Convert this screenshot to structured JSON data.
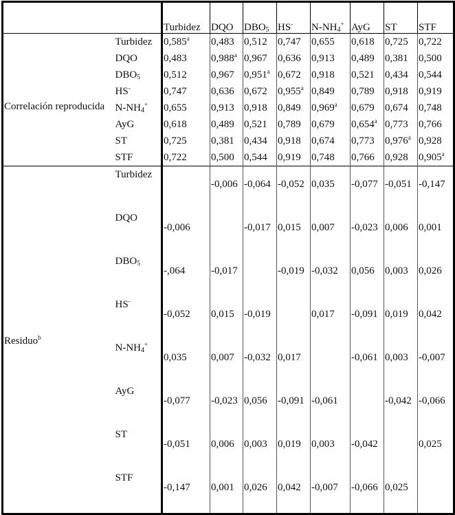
{
  "columns": [
    {
      "base": "Turbidez",
      "sub": "",
      "sup": ""
    },
    {
      "base": "DQO",
      "sub": "",
      "sup": ""
    },
    {
      "base": "DBO",
      "sub": "5",
      "sup": ""
    },
    {
      "base": "HS",
      "sub": "",
      "sup": "-"
    },
    {
      "base": "N-NH",
      "sub": "4",
      "sup": "+"
    },
    {
      "base": "AyG",
      "sub": "",
      "sup": ""
    },
    {
      "base": "ST",
      "sub": "",
      "sup": ""
    },
    {
      "base": "STF",
      "sub": "",
      "sup": ""
    }
  ],
  "sections": [
    {
      "label": "Correlación reproducida",
      "label_sup": "",
      "rows": [
        [
          "0,585a",
          "0,483",
          "0,512",
          "0,747",
          "0,655",
          "0,618",
          "0,725",
          "0,722"
        ],
        [
          "0,483",
          "0,988a",
          "0,967",
          "0,636",
          "0,913",
          "0,489",
          "0,381",
          "0,500"
        ],
        [
          "0,512",
          "0,967",
          "0,951a",
          "0,672",
          "0,918",
          "0,521",
          "0,434",
          "0,544"
        ],
        [
          "0,747",
          "0,636",
          "0,672",
          "0,955a",
          "0,849",
          "0,789",
          "0,918",
          "0,919"
        ],
        [
          "0,655",
          "0,913",
          "0,918",
          "0,849",
          "0,969a",
          "0,679",
          "0,674",
          "0,748"
        ],
        [
          "0,618",
          "0,489",
          "0,521",
          "0,789",
          "0,679",
          "0,654a",
          "0,773",
          "0,766"
        ],
        [
          "0,725",
          "0,381",
          "0,434",
          "0,918",
          "0,674",
          "0,773",
          "0,976a",
          "0,928"
        ],
        [
          "0,722",
          "0,500",
          "0,544",
          "0,919",
          "0,748",
          "0,766",
          "0,928",
          "0,905a"
        ]
      ]
    },
    {
      "label": "Residuo",
      "label_sup": "b",
      "rows": [
        [
          "",
          "-0,006",
          "-0,064",
          "-0,052",
          "0,035",
          "-0,077",
          "-0,051",
          "-0,147"
        ],
        [
          "-0,006",
          "",
          "-0,017",
          "0,015",
          "0,007",
          "-0,023",
          "0,006",
          "0,001"
        ],
        [
          "-,064",
          "-0,017",
          "",
          "-0,019",
          "-0,032",
          "0,056",
          "0,003",
          "0,026"
        ],
        [
          "-0,052",
          "0,015",
          "-0,019",
          "",
          "0,017",
          "-0,091",
          "0,019",
          "0,042"
        ],
        [
          "0,035",
          "0,007",
          "-0,032",
          "0,017",
          "",
          "-0,061",
          "0,003",
          "-0,007"
        ],
        [
          "-0,077",
          "-0,023",
          "0,056",
          "-0,091",
          "-0,061",
          "",
          "-0,042",
          "-0,066"
        ],
        [
          "-0,051",
          "0,006",
          "0,003",
          "0,019",
          "0,003",
          "-0,042",
          "",
          "0,025"
        ],
        [
          "-0,147",
          "0,001",
          "0,026",
          "0,042",
          "-0,007",
          "-0,066",
          "0,025",
          ""
        ]
      ]
    }
  ],
  "footnote_marker": "a"
}
